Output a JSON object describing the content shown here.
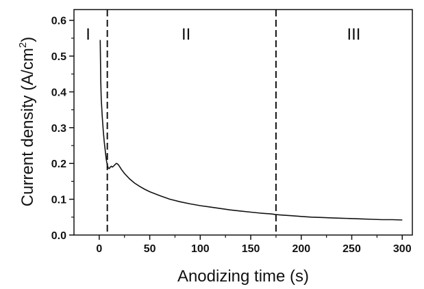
{
  "chart_data": {
    "type": "line",
    "xlabel": "Anodizing time (s)",
    "ylabel": "Current density (A/cm",
    "ylabel_superscript": "2",
    "ylabel_close": ")",
    "xlim": [
      -25,
      310
    ],
    "ylim": [
      0,
      0.63
    ],
    "xticks": [
      0,
      50,
      100,
      150,
      200,
      250,
      300
    ],
    "xtick_labels": [
      "0",
      "50",
      "100",
      "150",
      "200",
      "250",
      "300"
    ],
    "yticks": [
      0.0,
      0.1,
      0.2,
      0.3,
      0.4,
      0.5,
      0.6
    ],
    "ytick_labels": [
      "0.0",
      "0.1",
      "0.2",
      "0.3",
      "0.4",
      "0.5",
      "0.6"
    ],
    "grid": false,
    "series": [
      {
        "color": "#111111",
        "x": [
          1.0,
          1.5,
          2,
          3,
          4,
          5,
          6,
          7,
          8,
          9,
          10,
          11,
          12,
          13,
          14,
          15,
          16,
          17,
          18,
          19,
          20,
          22,
          25,
          30,
          35,
          40,
          45,
          50,
          60,
          70,
          80,
          90,
          100,
          110,
          120,
          130,
          140,
          150,
          160,
          170,
          175,
          180,
          190,
          200,
          210,
          220,
          230,
          240,
          250,
          260,
          270,
          280,
          290,
          300
        ],
        "y": [
          0.545,
          0.43,
          0.38,
          0.33,
          0.29,
          0.26,
          0.235,
          0.21,
          0.195,
          0.187,
          0.186,
          0.19,
          0.192,
          0.19,
          0.192,
          0.195,
          0.198,
          0.2,
          0.199,
          0.196,
          0.192,
          0.183,
          0.172,
          0.157,
          0.145,
          0.136,
          0.128,
          0.121,
          0.11,
          0.1,
          0.093,
          0.087,
          0.082,
          0.078,
          0.074,
          0.07,
          0.067,
          0.064,
          0.061,
          0.059,
          0.057,
          0.056,
          0.054,
          0.052,
          0.05,
          0.049,
          0.048,
          0.047,
          0.046,
          0.045,
          0.044,
          0.043,
          0.043,
          0.042
        ]
      }
    ],
    "regions": [
      {
        "label": "I",
        "x": -11
      },
      {
        "label": "II",
        "x": 86
      },
      {
        "label": "III",
        "x": 252
      }
    ],
    "vlines": [
      {
        "x": 8,
        "style": "dashed"
      },
      {
        "x": 175,
        "style": "dashed"
      }
    ]
  }
}
